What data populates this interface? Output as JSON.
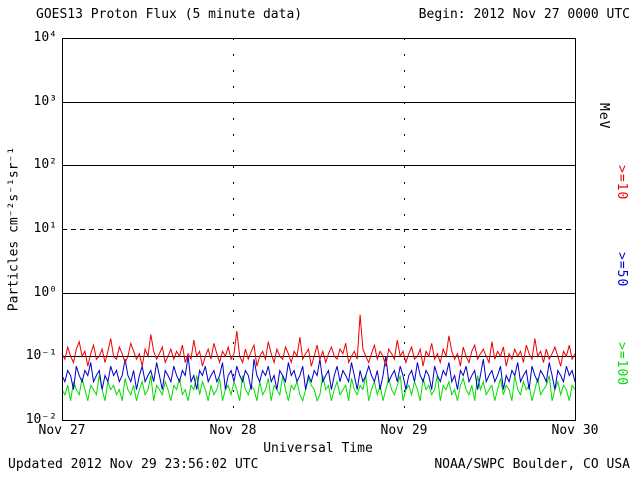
{
  "header": {
    "title": "GOES13 Proton Flux (5 minute data)",
    "begin_label": "Begin: 2012 Nov 27 0000 UTC"
  },
  "footer": {
    "updated": "Updated 2012 Nov 29 23:56:02 UTC",
    "source": "NOAA/SWPC Boulder, CO USA"
  },
  "chart_data": {
    "type": "line",
    "title": "GOES13 Proton Flux (5 minute data)",
    "xlabel": "Universal Time",
    "ylabel": "Particles cm⁻²s⁻¹sr⁻¹",
    "right_unit_label": "MeV",
    "yscale": "log",
    "ylim": [
      0.01,
      10000
    ],
    "yticks": [
      "10⁴",
      "10³",
      "10²",
      "10¹",
      "10⁰",
      "10⁻¹",
      "10⁻²"
    ],
    "xticks": [
      "Nov 27",
      "Nov 28",
      "Nov 29",
      "Nov 30"
    ],
    "grid": "partial",
    "hlines": [
      {
        "value": 1000,
        "style": "solid"
      },
      {
        "value": 100,
        "style": "solid"
      },
      {
        "value": 10,
        "style": "dashed"
      },
      {
        "value": 1,
        "style": "solid"
      },
      {
        "value": 0.1,
        "style": "solid"
      }
    ],
    "vlines_days": [
      1,
      2
    ],
    "legend_position": "right-rotated",
    "series": [
      {
        "name": ">=10",
        "unit": "MeV",
        "color": "#ee0000",
        "values": [
          0.11,
          0.09,
          0.14,
          0.1,
          0.08,
          0.13,
          0.17,
          0.1,
          0.12,
          0.07,
          0.11,
          0.15,
          0.09,
          0.1,
          0.13,
          0.08,
          0.12,
          0.19,
          0.1,
          0.09,
          0.14,
          0.11,
          0.08,
          0.1,
          0.16,
          0.12,
          0.09,
          0.11,
          0.07,
          0.13,
          0.1,
          0.22,
          0.12,
          0.09,
          0.11,
          0.14,
          0.08,
          0.1,
          0.13,
          0.09,
          0.12,
          0.1,
          0.15,
          0.08,
          0.11,
          0.09,
          0.18,
          0.1,
          0.12,
          0.07,
          0.1,
          0.13,
          0.09,
          0.16,
          0.11,
          0.08,
          0.12,
          0.1,
          0.14,
          0.09,
          0.11,
          0.25,
          0.1,
          0.08,
          0.13,
          0.09,
          0.12,
          0.15,
          0.07,
          0.1,
          0.12,
          0.09,
          0.17,
          0.11,
          0.08,
          0.13,
          0.1,
          0.09,
          0.14,
          0.11,
          0.08,
          0.12,
          0.1,
          0.2,
          0.09,
          0.11,
          0.13,
          0.07,
          0.1,
          0.15,
          0.09,
          0.12,
          0.08,
          0.11,
          0.14,
          0.1,
          0.09,
          0.13,
          0.11,
          0.16,
          0.08,
          0.1,
          0.12,
          0.09,
          0.45,
          0.13,
          0.1,
          0.08,
          0.11,
          0.15,
          0.09,
          0.12,
          0.1,
          0.07,
          0.13,
          0.11,
          0.09,
          0.18,
          0.1,
          0.12,
          0.08,
          0.11,
          0.14,
          0.09,
          0.1,
          0.13,
          0.07,
          0.12,
          0.1,
          0.16,
          0.09,
          0.11,
          0.08,
          0.13,
          0.1,
          0.21,
          0.12,
          0.09,
          0.11,
          0.07,
          0.14,
          0.1,
          0.08,
          0.12,
          0.15,
          0.09,
          0.11,
          0.13,
          0.1,
          0.08,
          0.17,
          0.09,
          0.12,
          0.1,
          0.14,
          0.07,
          0.11,
          0.09,
          0.13,
          0.1,
          0.12,
          0.08,
          0.15,
          0.11,
          0.09,
          0.19,
          0.1,
          0.12,
          0.08,
          0.13,
          0.09,
          0.11,
          0.14,
          0.1,
          0.07,
          0.12,
          0.1,
          0.15,
          0.09,
          0.11
        ]
      },
      {
        "name": ">=50",
        "unit": "MeV",
        "color": "#0000cc",
        "values": [
          0.05,
          0.04,
          0.06,
          0.05,
          0.03,
          0.07,
          0.05,
          0.04,
          0.06,
          0.05,
          0.08,
          0.04,
          0.05,
          0.06,
          0.03,
          0.05,
          0.04,
          0.07,
          0.05,
          0.06,
          0.04,
          0.05,
          0.09,
          0.05,
          0.04,
          0.06,
          0.03,
          0.05,
          0.07,
          0.04,
          0.05,
          0.06,
          0.04,
          0.08,
          0.05,
          0.03,
          0.06,
          0.05,
          0.04,
          0.07,
          0.05,
          0.04,
          0.06,
          0.05,
          0.1,
          0.04,
          0.05,
          0.03,
          0.06,
          0.05,
          0.07,
          0.04,
          0.05,
          0.06,
          0.04,
          0.05,
          0.08,
          0.03,
          0.05,
          0.06,
          0.04,
          0.07,
          0.05,
          0.04,
          0.06,
          0.05,
          0.03,
          0.09,
          0.05,
          0.04,
          0.06,
          0.05,
          0.07,
          0.04,
          0.05,
          0.03,
          0.06,
          0.05,
          0.04,
          0.08,
          0.05,
          0.06,
          0.04,
          0.05,
          0.07,
          0.03,
          0.05,
          0.04,
          0.06,
          0.05,
          0.09,
          0.04,
          0.05,
          0.06,
          0.03,
          0.05,
          0.07,
          0.04,
          0.06,
          0.05,
          0.04,
          0.08,
          0.05,
          0.03,
          0.06,
          0.04,
          0.05,
          0.07,
          0.05,
          0.04,
          0.06,
          0.03,
          0.05,
          0.1,
          0.04,
          0.05,
          0.06,
          0.04,
          0.07,
          0.05,
          0.03,
          0.05,
          0.06,
          0.04,
          0.08,
          0.05,
          0.04,
          0.06,
          0.05,
          0.03,
          0.07,
          0.05,
          0.04,
          0.06,
          0.05,
          0.08,
          0.04,
          0.05,
          0.03,
          0.06,
          0.05,
          0.07,
          0.04,
          0.05,
          0.06,
          0.03,
          0.05,
          0.09,
          0.04,
          0.05,
          0.06,
          0.04,
          0.05,
          0.07,
          0.03,
          0.05,
          0.04,
          0.06,
          0.05,
          0.08,
          0.04,
          0.05,
          0.06,
          0.03,
          0.07,
          0.05,
          0.04,
          0.06,
          0.05,
          0.04,
          0.08,
          0.05,
          0.03,
          0.06,
          0.05,
          0.04,
          0.07,
          0.05,
          0.06,
          0.04
        ]
      },
      {
        "name": ">=100",
        "unit": "MeV",
        "color": "#00dd00",
        "values": [
          0.03,
          0.025,
          0.035,
          0.02,
          0.04,
          0.03,
          0.025,
          0.045,
          0.03,
          0.02,
          0.035,
          0.03,
          0.025,
          0.05,
          0.03,
          0.02,
          0.04,
          0.03,
          0.035,
          0.025,
          0.03,
          0.02,
          0.045,
          0.03,
          0.025,
          0.035,
          0.02,
          0.03,
          0.04,
          0.025,
          0.03,
          0.05,
          0.02,
          0.035,
          0.03,
          0.025,
          0.04,
          0.03,
          0.02,
          0.035,
          0.03,
          0.045,
          0.025,
          0.03,
          0.02,
          0.035,
          0.03,
          0.05,
          0.025,
          0.04,
          0.03,
          0.02,
          0.035,
          0.025,
          0.03,
          0.045,
          0.02,
          0.03,
          0.035,
          0.025,
          0.04,
          0.03,
          0.02,
          0.05,
          0.03,
          0.025,
          0.035,
          0.03,
          0.02,
          0.04,
          0.025,
          0.03,
          0.045,
          0.02,
          0.035,
          0.03,
          0.025,
          0.05,
          0.03,
          0.02,
          0.035,
          0.03,
          0.04,
          0.025,
          0.02,
          0.03,
          0.045,
          0.035,
          0.03,
          0.02,
          0.025,
          0.05,
          0.03,
          0.035,
          0.02,
          0.03,
          0.04,
          0.025,
          0.03,
          0.035,
          0.02,
          0.045,
          0.03,
          0.025,
          0.035,
          0.03,
          0.05,
          0.02,
          0.03,
          0.04,
          0.025,
          0.035,
          0.02,
          0.03,
          0.045,
          0.03,
          0.025,
          0.035,
          0.05,
          0.02,
          0.03,
          0.035,
          0.025,
          0.04,
          0.03,
          0.02,
          0.045,
          0.03,
          0.035,
          0.025,
          0.03,
          0.05,
          0.02,
          0.035,
          0.03,
          0.04,
          0.025,
          0.03,
          0.02,
          0.035,
          0.045,
          0.03,
          0.025,
          0.035,
          0.02,
          0.05,
          0.03,
          0.04,
          0.025,
          0.03,
          0.035,
          0.02,
          0.03,
          0.045,
          0.025,
          0.035,
          0.03,
          0.02,
          0.05,
          0.03,
          0.025,
          0.04,
          0.03,
          0.035,
          0.02,
          0.03,
          0.045,
          0.025,
          0.03,
          0.035,
          0.05,
          0.02,
          0.03,
          0.04,
          0.025,
          0.035,
          0.03,
          0.02,
          0.035,
          0.03
        ]
      }
    ]
  }
}
